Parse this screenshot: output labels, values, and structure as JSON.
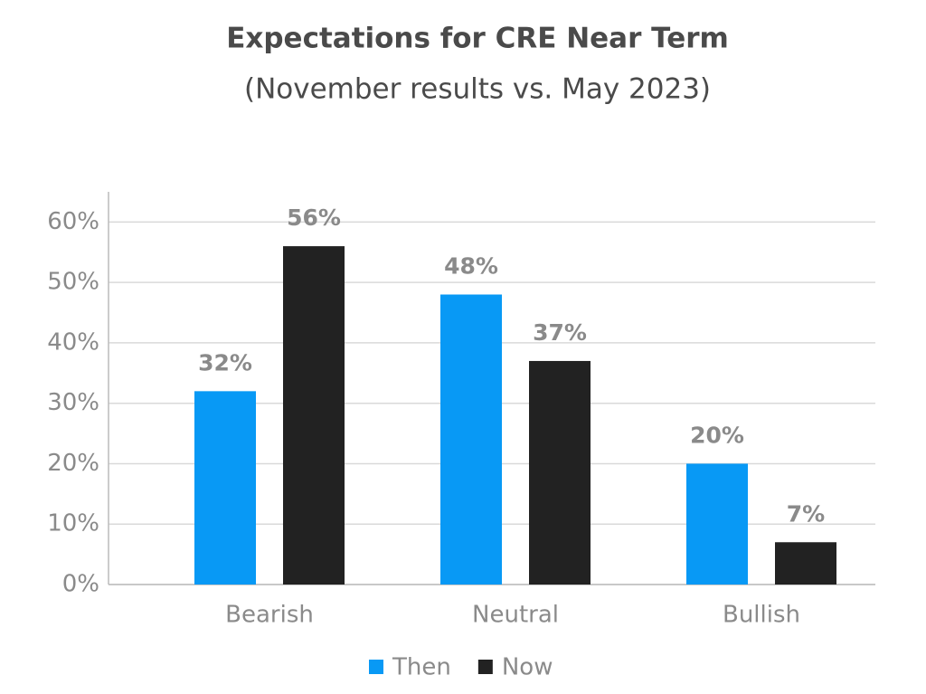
{
  "chart_data": {
    "type": "bar",
    "title": "Expectations for CRE Near Term",
    "subtitle": "(November results vs. May 2023)",
    "categories": [
      "Bearish",
      "Neutral",
      "Bullish"
    ],
    "series": [
      {
        "name": "Then",
        "color": "#0899f5",
        "values": [
          32,
          48,
          20
        ],
        "value_labels": [
          "32%",
          "48%",
          "20%"
        ]
      },
      {
        "name": "Now",
        "color": "#222222",
        "values": [
          56,
          37,
          7
        ],
        "value_labels": [
          "56%",
          "37%",
          "7%"
        ]
      }
    ],
    "ylim": [
      0,
      65
    ],
    "yticks": [
      {
        "value": 0,
        "label": "0%"
      },
      {
        "value": 10,
        "label": "10%"
      },
      {
        "value": 20,
        "label": "20%"
      },
      {
        "value": 30,
        "label": "30%"
      },
      {
        "value": 40,
        "label": "40%"
      },
      {
        "value": 50,
        "label": "50%"
      },
      {
        "value": 60,
        "label": "60%"
      }
    ],
    "grid": true,
    "legend": "bottom"
  }
}
